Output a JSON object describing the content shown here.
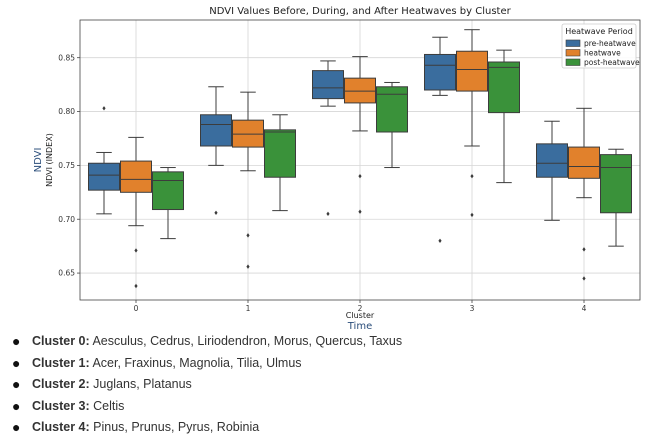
{
  "chart_data": {
    "type": "box",
    "title": "NDVI Values Before, During, and After Heatwaves by Cluster",
    "xlabel": "Cluster",
    "xlabel_secondary": "Time",
    "ylabel": "NDVI (INDEX)",
    "ylabel_secondary": "NDVI",
    "categories": [
      "0",
      "1",
      "2",
      "3",
      "4"
    ],
    "ylim": [
      0.625,
      0.885
    ],
    "yticks": [
      0.65,
      0.7,
      0.75,
      0.8,
      0.85
    ],
    "ytick_labels": [
      "0.65",
      "0.70",
      "0.75",
      "0.80",
      "0.85"
    ],
    "grid": true,
    "legend": {
      "title": "Heatwave Period",
      "placement": "top-right"
    },
    "series": [
      {
        "name": "pre-heatwave",
        "color": "#3a6d9e",
        "boxes": [
          {
            "whislo": 0.705,
            "q1": 0.727,
            "med": 0.741,
            "q3": 0.752,
            "whishi": 0.762,
            "fliers": [
              0.803
            ]
          },
          {
            "whislo": 0.75,
            "q1": 0.768,
            "med": 0.788,
            "q3": 0.797,
            "whishi": 0.823,
            "fliers": [
              0.706
            ]
          },
          {
            "whislo": 0.805,
            "q1": 0.812,
            "med": 0.822,
            "q3": 0.838,
            "whishi": 0.847,
            "fliers": [
              0.705
            ]
          },
          {
            "whislo": 0.815,
            "q1": 0.82,
            "med": 0.843,
            "q3": 0.853,
            "whishi": 0.869,
            "fliers": [
              0.68
            ]
          },
          {
            "whislo": 0.699,
            "q1": 0.739,
            "med": 0.752,
            "q3": 0.77,
            "whishi": 0.791,
            "fliers": []
          }
        ]
      },
      {
        "name": "heatwave",
        "color": "#e1812c",
        "boxes": [
          {
            "whislo": 0.694,
            "q1": 0.725,
            "med": 0.737,
            "q3": 0.754,
            "whishi": 0.776,
            "fliers": [
              0.671,
              0.638
            ]
          },
          {
            "whislo": 0.745,
            "q1": 0.767,
            "med": 0.779,
            "q3": 0.792,
            "whishi": 0.818,
            "fliers": [
              0.685,
              0.656
            ]
          },
          {
            "whislo": 0.782,
            "q1": 0.808,
            "med": 0.819,
            "q3": 0.831,
            "whishi": 0.851,
            "fliers": [
              0.74,
              0.707
            ]
          },
          {
            "whislo": 0.768,
            "q1": 0.819,
            "med": 0.839,
            "q3": 0.856,
            "whishi": 0.876,
            "fliers": [
              0.74,
              0.704
            ]
          },
          {
            "whislo": 0.72,
            "q1": 0.738,
            "med": 0.749,
            "q3": 0.767,
            "whishi": 0.803,
            "fliers": [
              0.672,
              0.645
            ]
          }
        ]
      },
      {
        "name": "post-heatwave",
        "color": "#3a923a",
        "boxes": [
          {
            "whislo": 0.682,
            "q1": 0.709,
            "med": 0.736,
            "q3": 0.744,
            "whishi": 0.748,
            "fliers": []
          },
          {
            "whislo": 0.708,
            "q1": 0.739,
            "med": 0.781,
            "q3": 0.783,
            "whishi": 0.797,
            "fliers": []
          },
          {
            "whislo": 0.748,
            "q1": 0.781,
            "med": 0.816,
            "q3": 0.823,
            "whishi": 0.827,
            "fliers": []
          },
          {
            "whislo": 0.734,
            "q1": 0.799,
            "med": 0.841,
            "q3": 0.846,
            "whishi": 0.857,
            "fliers": []
          },
          {
            "whislo": 0.675,
            "q1": 0.706,
            "med": 0.748,
            "q3": 0.76,
            "whishi": 0.765,
            "fliers": []
          }
        ]
      }
    ]
  },
  "notes": [
    {
      "label": "Cluster 0:",
      "text": " Aesculus, Cedrus, Liriodendron, Morus, Quercus, Taxus"
    },
    {
      "label": "Cluster 1:",
      "text": " Acer, Fraxinus, Magnolia, Tilia, Ulmus"
    },
    {
      "label": "Cluster 2:",
      "text": " Juglans, Platanus"
    },
    {
      "label": "Cluster 3:",
      "text": " Celtis"
    },
    {
      "label": "Cluster 4:",
      "text": " Pinus, Prunus, Pyrus, Robinia"
    }
  ]
}
